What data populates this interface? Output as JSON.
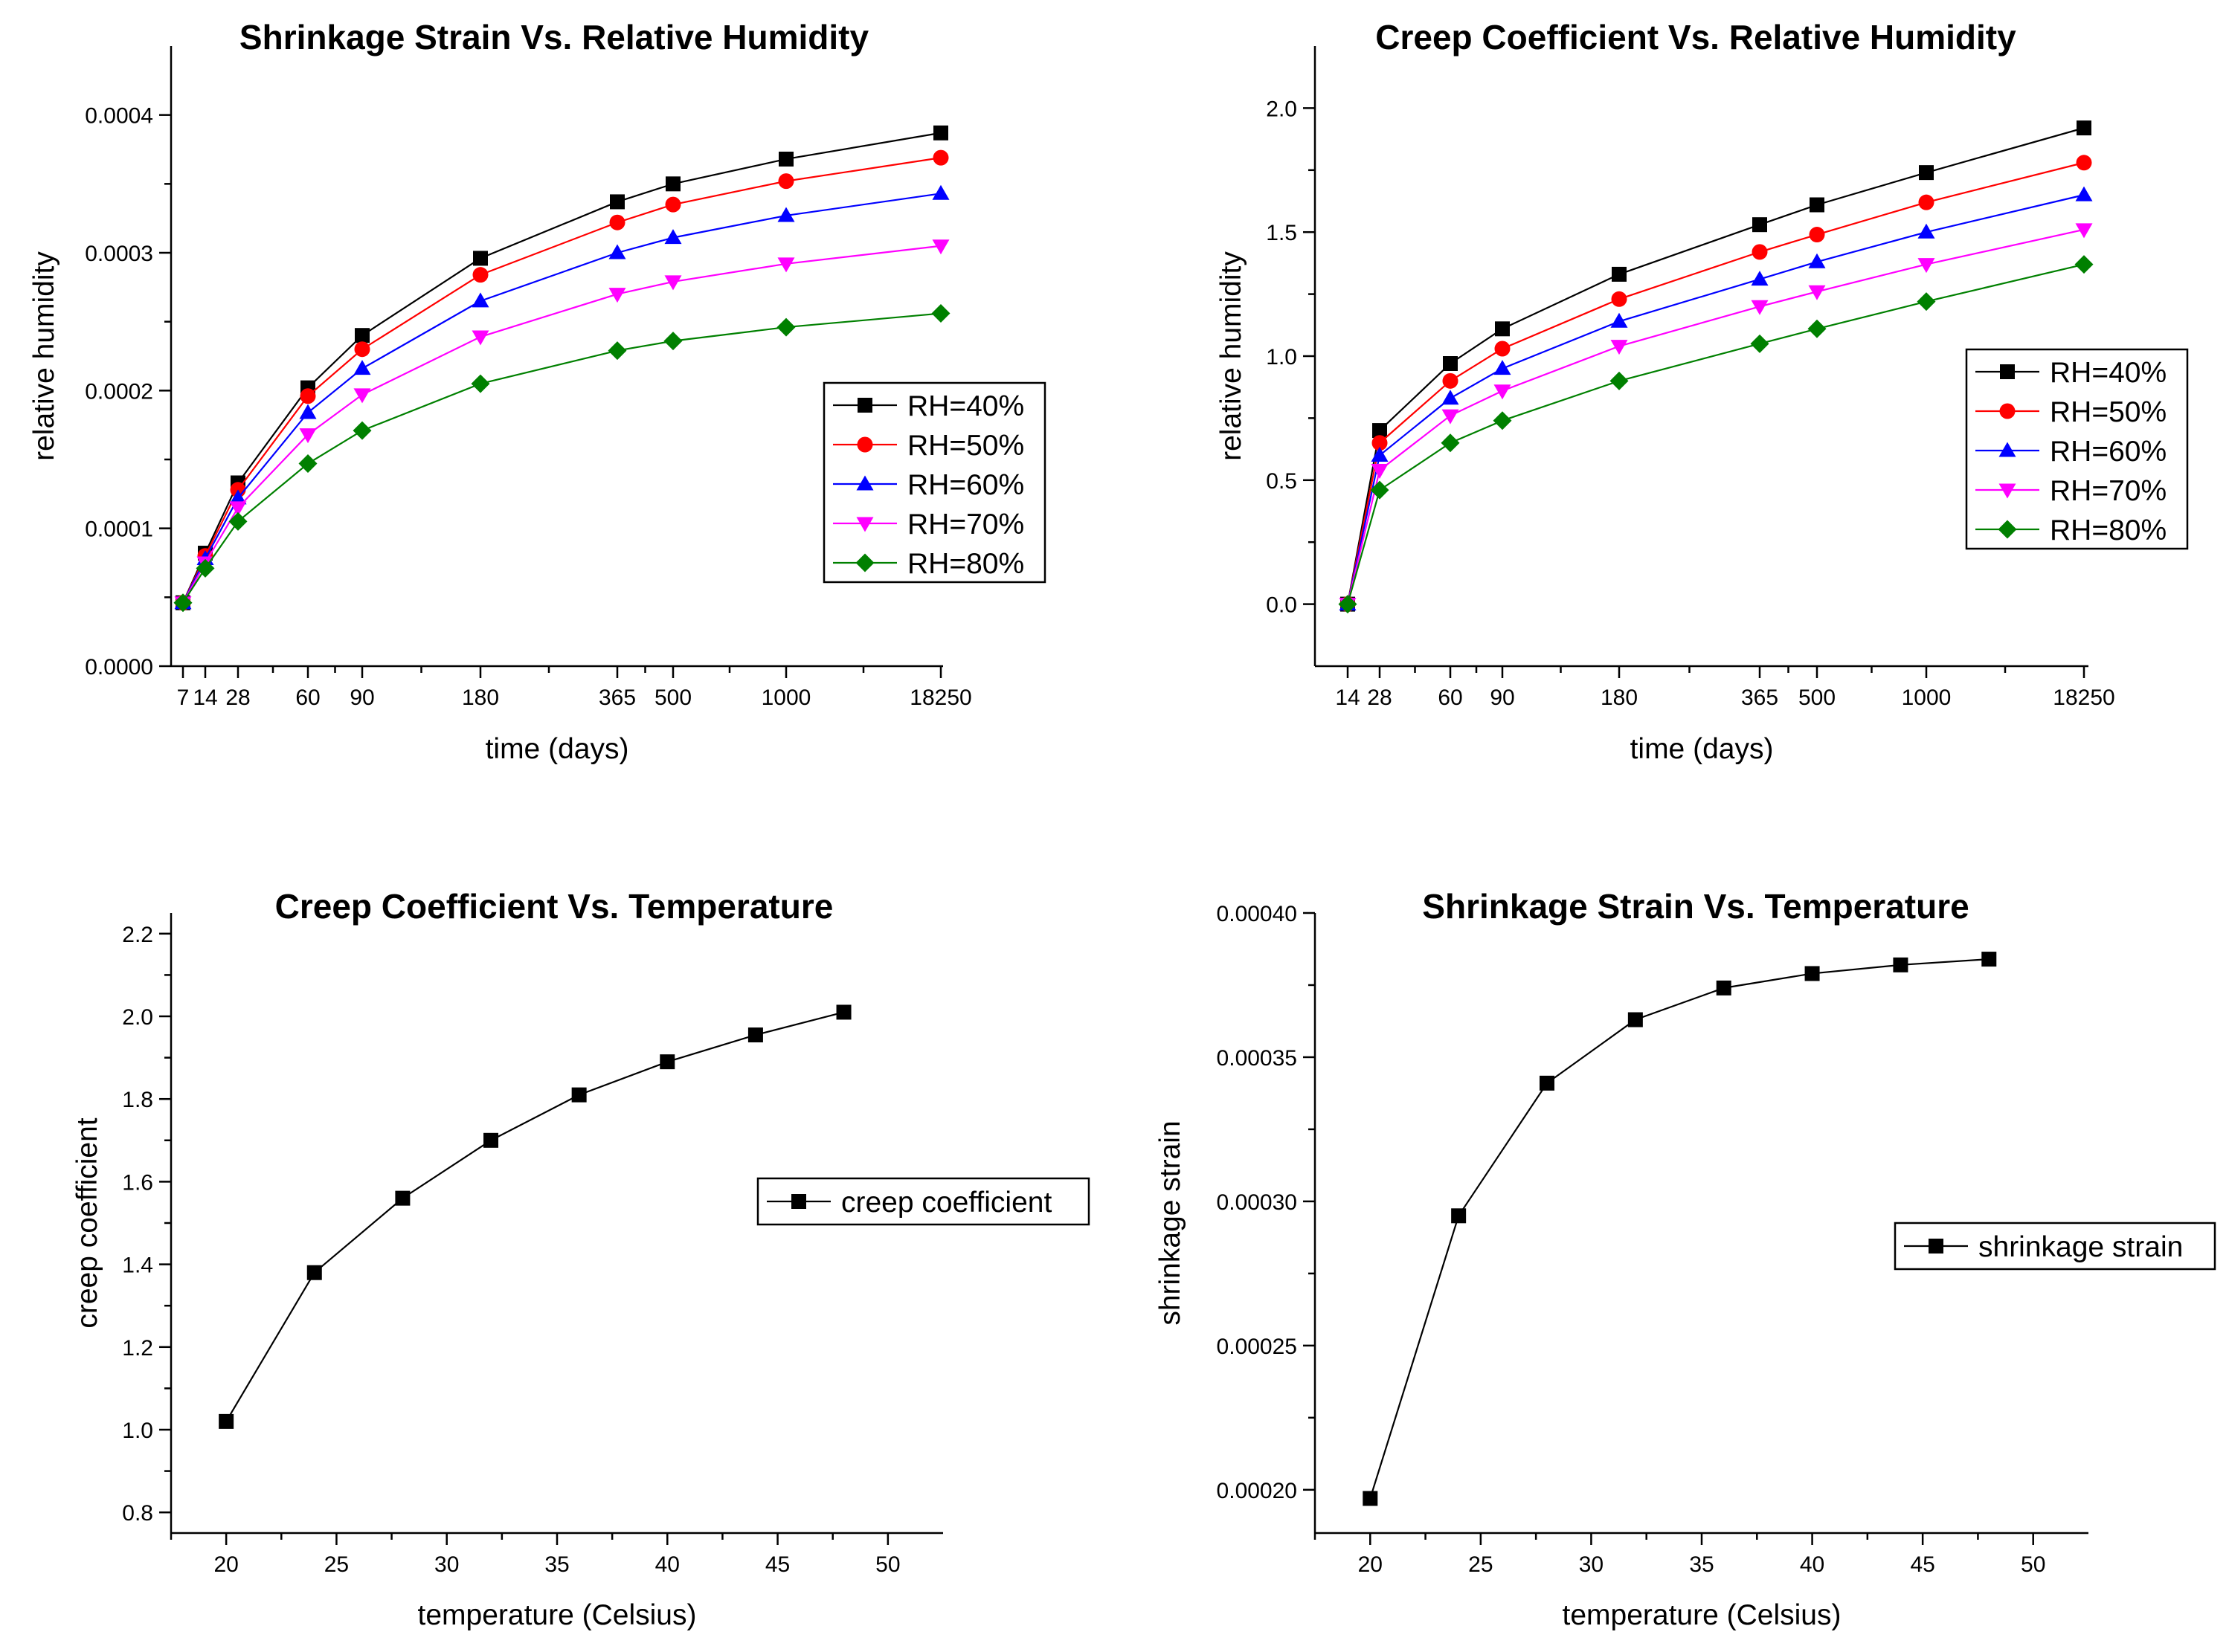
{
  "chart_data": [
    {
      "type": "line",
      "title": "Shrinkage Strain Vs. Relative Humidity",
      "xlabel": "time (days)",
      "ylabel": "relative humidity",
      "x_scale": "categorical",
      "categories": [
        "7",
        "14",
        "28",
        "60",
        "90",
        "180",
        "365",
        "500",
        "1000",
        "18250"
      ],
      "y_ticks": [
        "0.0000",
        "0.0001",
        "0.0002",
        "0.0003",
        "0.0004"
      ],
      "ylim": [
        0,
        0.00045
      ],
      "series": [
        {
          "name": "RH=40%",
          "color": "#000000",
          "marker": "square",
          "values": [
            4.6e-05,
            8.2e-05,
            0.000133,
            0.000202,
            0.00024,
            0.000296,
            0.000337,
            0.00035,
            0.000368,
            0.000387
          ]
        },
        {
          "name": "RH=50%",
          "color": "#ff0000",
          "marker": "circle",
          "values": [
            4.6e-05,
            8e-05,
            0.000128,
            0.000196,
            0.00023,
            0.000284,
            0.000322,
            0.000335,
            0.000352,
            0.000369
          ]
        },
        {
          "name": "RH=60%",
          "color": "#0000ff",
          "marker": "triangle-up",
          "values": [
            4.6e-05,
            7.8e-05,
            0.000122,
            0.000184,
            0.000216,
            0.000265,
            0.0003,
            0.000311,
            0.000327,
            0.000343
          ]
        },
        {
          "name": "RH=70%",
          "color": "#ff00ff",
          "marker": "triangle-down",
          "values": [
            4.6e-05,
            7.5e-05,
            0.000115,
            0.000168,
            0.000197,
            0.000239,
            0.00027,
            0.000279,
            0.000292,
            0.000305
          ]
        },
        {
          "name": "RH=80%",
          "color": "#008000",
          "marker": "diamond",
          "values": [
            4.6e-05,
            7.1e-05,
            0.000105,
            0.000147,
            0.000171,
            0.000205,
            0.000229,
            0.000236,
            0.000246,
            0.000256
          ]
        }
      ],
      "legend": "right"
    },
    {
      "type": "line",
      "title": "Creep Coefficient Vs. Relative Humidity",
      "xlabel": "time (days)",
      "ylabel": "relative humidity",
      "x_scale": "categorical",
      "categories": [
        "14",
        "28",
        "60",
        "90",
        "180",
        "365",
        "500",
        "1000",
        "18250"
      ],
      "y_ticks": [
        "0.0",
        "0.5",
        "1.0",
        "1.5",
        "2.0"
      ],
      "ylim": [
        -0.25,
        2.25
      ],
      "series": [
        {
          "name": "RH=40%",
          "color": "#000000",
          "marker": "square",
          "values": [
            0.0,
            0.7,
            0.97,
            1.11,
            1.33,
            1.53,
            1.61,
            1.74,
            1.92
          ]
        },
        {
          "name": "RH=50%",
          "color": "#ff0000",
          "marker": "circle",
          "values": [
            0.0,
            0.65,
            0.9,
            1.03,
            1.23,
            1.42,
            1.49,
            1.62,
            1.78
          ]
        },
        {
          "name": "RH=60%",
          "color": "#0000ff",
          "marker": "triangle-up",
          "values": [
            0.0,
            0.6,
            0.83,
            0.95,
            1.14,
            1.31,
            1.38,
            1.5,
            1.65
          ]
        },
        {
          "name": "RH=70%",
          "color": "#ff00ff",
          "marker": "triangle-down",
          "values": [
            0.0,
            0.54,
            0.76,
            0.86,
            1.04,
            1.2,
            1.26,
            1.37,
            1.51
          ]
        },
        {
          "name": "RH=80%",
          "color": "#008000",
          "marker": "diamond",
          "values": [
            0.0,
            0.46,
            0.65,
            0.74,
            0.9,
            1.05,
            1.11,
            1.22,
            1.37
          ]
        }
      ],
      "legend": "right"
    },
    {
      "type": "line",
      "title": "Creep Coefficient Vs. Temperature",
      "xlabel": "temperature (Celsius)",
      "ylabel": "creep coefficient",
      "x_scale": "linear",
      "xlim": [
        17.5,
        52.5
      ],
      "x_ticks": [
        "20",
        "25",
        "30",
        "35",
        "40",
        "45",
        "50"
      ],
      "y_ticks": [
        "0.8",
        "1.0",
        "1.2",
        "1.4",
        "1.6",
        "1.8",
        "2.0",
        "2.2"
      ],
      "ylim": [
        0.75,
        2.25
      ],
      "series": [
        {
          "name": "creep coefficient",
          "color": "#000000",
          "marker": "square",
          "x": [
            20,
            24,
            28,
            32,
            36,
            40,
            44,
            48
          ],
          "values": [
            1.02,
            1.38,
            1.56,
            1.7,
            1.81,
            1.89,
            1.955,
            2.01
          ]
        }
      ],
      "legend": "right"
    },
    {
      "type": "line",
      "title": "Shrinkage Strain Vs. Temperature",
      "xlabel": "temperature (Celsius)",
      "ylabel": "shrinkage strain",
      "x_scale": "linear",
      "xlim": [
        17.5,
        52.5
      ],
      "x_ticks": [
        "20",
        "25",
        "30",
        "35",
        "40",
        "45",
        "50"
      ],
      "y_ticks": [
        "0.00020",
        "0.00025",
        "0.00030",
        "0.00035",
        "0.00040"
      ],
      "ylim": [
        0.000185,
        0.0004
      ],
      "series": [
        {
          "name": "shrinkage strain",
          "color": "#000000",
          "marker": "square",
          "x": [
            20,
            24,
            28,
            32,
            36,
            40,
            44,
            48
          ],
          "values": [
            0.000197,
            0.000295,
            0.000341,
            0.000363,
            0.000374,
            0.000379,
            0.000382,
            0.000384
          ]
        }
      ],
      "legend": "right"
    }
  ]
}
